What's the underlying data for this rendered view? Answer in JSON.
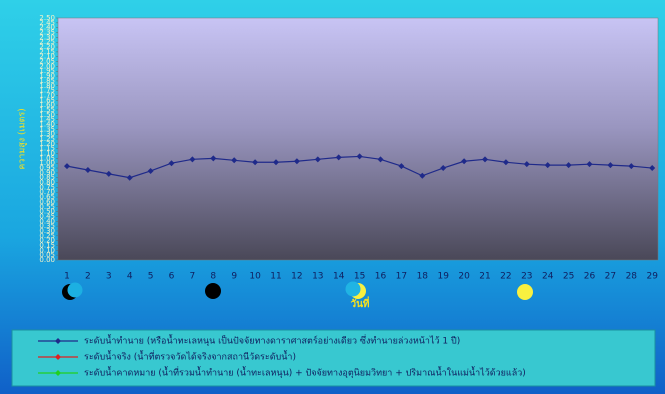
{
  "chart_data": {
    "type": "line",
    "y_label": "ความสูง (เมตร)",
    "x_label": "วันที่",
    "categories": [
      "1",
      "2",
      "3",
      "4",
      "5",
      "6",
      "7",
      "8",
      "9",
      "10",
      "11",
      "12",
      "13",
      "14",
      "15",
      "16",
      "17",
      "18",
      "19",
      "20",
      "21",
      "22",
      "23",
      "24",
      "25",
      "26",
      "27",
      "28",
      "29"
    ],
    "series": [
      {
        "name": "ระดับน้ำทำนาย  (หรือน้ำทะเลหนุน  เป็นปัจจัยทางดาราศาสตร์อย่างเดียว  ซึ่งทำนายล่วงหน้าไว้  1 ปี)",
        "color": "#1f2a8a",
        "values": [
          0.97,
          0.93,
          0.89,
          0.85,
          0.92,
          1.0,
          1.04,
          1.05,
          1.03,
          1.01,
          1.01,
          1.02,
          1.04,
          1.06,
          1.07,
          1.04,
          0.97,
          0.87,
          0.95,
          1.02,
          1.04,
          1.01,
          0.99,
          0.98,
          0.98,
          0.99,
          0.98,
          0.97,
          0.95
        ]
      },
      {
        "name": "ระดับน้ำจริง  (น้ำที่ตรวจวัดได้จริงจากสถานีวัดระดับน้ำ)",
        "color": "#e02020",
        "values": [
          null,
          null,
          null,
          null,
          null,
          null,
          null,
          null,
          null,
          null,
          null,
          null,
          null,
          null,
          null,
          null,
          null,
          null,
          null,
          null,
          null,
          null,
          null,
          null,
          null,
          null,
          null,
          null,
          null
        ]
      },
      {
        "name": "ระดับน้ำคาดหมาย  (น้ำที่รวมน้ำทำนาย  (น้ำทะเลหนุน)  + ปัจจัยทางอุตุนิยมวิทยา  + ปริมาณน้ำในแม่น้ำไว้ด้วยแล้ว)",
        "color": "#20d020",
        "values": [
          null,
          null,
          null,
          null,
          null,
          null,
          null,
          null,
          null,
          null,
          null,
          null,
          null,
          null,
          null,
          null,
          null,
          null,
          null,
          null,
          null,
          null,
          null,
          null,
          null,
          null,
          null,
          null,
          null
        ]
      }
    ],
    "ylim": [
      0,
      2.5
    ],
    "yticks": [
      {
        "value": 0,
        "label": "0.00"
      },
      {
        "value": 0.05,
        "label": "0.05"
      },
      {
        "value": 0.1,
        "label": "0.10"
      },
      {
        "value": 0.15,
        "label": "0.15"
      },
      {
        "value": 0.2,
        "label": "0.20"
      },
      {
        "value": 0.25,
        "label": "0.25"
      },
      {
        "value": 0.3,
        "label": "0.30"
      },
      {
        "value": 0.35,
        "label": "0.35"
      },
      {
        "value": 0.4,
        "label": "0.40"
      },
      {
        "value": 0.45,
        "label": "0.45"
      },
      {
        "value": 0.5,
        "label": "0.50"
      },
      {
        "value": 0.55,
        "label": "0.55"
      },
      {
        "value": 0.6,
        "label": "0.60"
      },
      {
        "value": 0.65,
        "label": "0.65"
      },
      {
        "value": 0.7,
        "label": "0.70"
      },
      {
        "value": 0.75,
        "label": "0.75"
      },
      {
        "value": 0.8,
        "label": "0.80"
      },
      {
        "value": 0.85,
        "label": "0.85"
      },
      {
        "value": 0.9,
        "label": "0.90"
      },
      {
        "value": 0.95,
        "label": "0.95"
      },
      {
        "value": 1,
        "label": "1.00"
      },
      {
        "value": 1.05,
        "label": "1.05"
      },
      {
        "value": 1.1,
        "label": "1.10"
      },
      {
        "value": 1.15,
        "label": "1.15"
      },
      {
        "value": 1.2,
        "label": "1.20"
      },
      {
        "value": 1.25,
        "label": "1.25"
      },
      {
        "value": 1.3,
        "label": "1.30"
      },
      {
        "value": 1.35,
        "label": "1.35"
      },
      {
        "value": 1.4,
        "label": "1.40"
      },
      {
        "value": 1.45,
        "label": "1.45"
      },
      {
        "value": 1.5,
        "label": "1.50"
      },
      {
        "value": 1.55,
        "label": "1.55"
      },
      {
        "value": 1.6,
        "label": "1.60"
      },
      {
        "value": 1.65,
        "label": "1.65"
      },
      {
        "value": 1.7,
        "label": "1.70"
      },
      {
        "value": 1.75,
        "label": "1.75"
      },
      {
        "value": 1.8,
        "label": "1.80"
      },
      {
        "value": 1.85,
        "label": "1.85"
      },
      {
        "value": 1.9,
        "label": "1.90"
      },
      {
        "value": 1.95,
        "label": "1.95"
      },
      {
        "value": 2,
        "label": "2.00"
      },
      {
        "value": 2.05,
        "label": "2.05"
      },
      {
        "value": 2.1,
        "label": "2.10"
      },
      {
        "value": 2.15,
        "label": "2.15"
      },
      {
        "value": 2.2,
        "label": "2.20"
      },
      {
        "value": 2.25,
        "label": "2.25"
      },
      {
        "value": 2.3,
        "label": "2.30"
      },
      {
        "value": 2.35,
        "label": "2.35"
      },
      {
        "value": 2.4,
        "label": "2.40"
      },
      {
        "value": 2.45,
        "label": "2.45"
      },
      {
        "value": 2.5,
        "label": "2.50"
      }
    ],
    "grid": false
  }
}
